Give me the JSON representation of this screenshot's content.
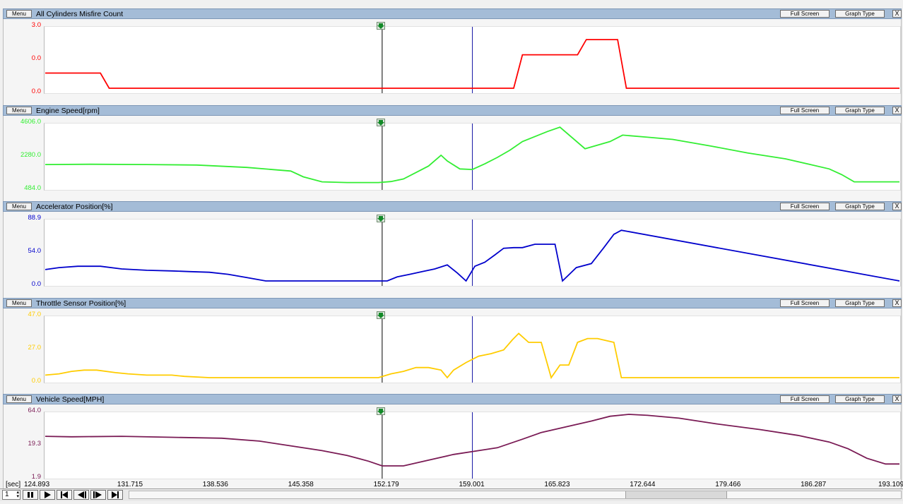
{
  "panels": [
    {
      "title": "All Cylinders Misfire Count",
      "color": "#ff0000",
      "ylabels": [
        "3.0",
        "0.0",
        "0.0"
      ],
      "menu_label": "Menu",
      "full_screen_label": "Full Screen",
      "graph_type_label": "Graph Type",
      "close_label": "X",
      "chart_data": {
        "type": "line",
        "x": [
          124.893,
          129.3,
          130.0,
          151.5,
          160.0,
          162.3,
          163.0,
          167.4,
          168.1,
          170.6,
          171.3,
          193.109
        ],
        "values": [
          0.5,
          0.5,
          0,
          0,
          0,
          0,
          1.1,
          1.1,
          1.6,
          1.6,
          0,
          0
        ],
        "ylim": [
          0,
          1.95
        ]
      }
    },
    {
      "title": "Engine Speed[rpm]",
      "color": "#33ee33",
      "ylabels": [
        "4606.0",
        "2280.0",
        "484.0"
      ],
      "menu_label": "Menu",
      "full_screen_label": "Full Screen",
      "graph_type_label": "Graph Type",
      "close_label": "X",
      "chart_data": {
        "type": "line",
        "x": [
          124.893,
          128.5,
          133.0,
          137.0,
          141.0,
          144.5,
          145.5,
          147.0,
          149.0,
          151.5,
          152.5,
          153.5,
          154.5,
          155.5,
          156.5,
          157.0,
          158.0,
          159.0,
          160.0,
          161.0,
          162.0,
          163.0,
          164.0,
          165.0,
          166.0,
          168.0,
          170.0,
          171.0,
          173.0,
          175.0,
          178.0,
          181.0,
          184.0,
          186.0,
          187.5,
          188.5,
          189.5,
          193.109
        ],
        "values": [
          1900,
          1920,
          1900,
          1870,
          1700,
          1450,
          1050,
          700,
          650,
          650,
          720,
          900,
          1350,
          1800,
          2550,
          2150,
          1600,
          1560,
          1950,
          2400,
          2900,
          3500,
          3850,
          4200,
          4500,
          3000,
          3500,
          3950,
          3800,
          3650,
          3200,
          2700,
          2300,
          1900,
          1600,
          1200,
          700,
          700
        ],
        "ylim": [
          484,
          4606
        ]
      }
    },
    {
      "title": "Accelerator Position[%]",
      "color": "#0000cc",
      "ylabels": [
        "88.9",
        "54.0",
        "0.0"
      ],
      "menu_label": "Menu",
      "full_screen_label": "Full Screen",
      "graph_type_label": "Graph Type",
      "close_label": "X",
      "chart_data": {
        "type": "line",
        "x": [
          124.893,
          126.0,
          127.5,
          128.5,
          129.3,
          131.0,
          133.0,
          135.0,
          136.5,
          138.0,
          139.5,
          141.0,
          142.5,
          151.5,
          152.2,
          153.0,
          154.0,
          155.0,
          156.0,
          157.0,
          157.8,
          158.5,
          159.2,
          160.0,
          160.8,
          161.5,
          162.3,
          163.0,
          164.0,
          164.8,
          165.6,
          166.2,
          167.3,
          168.5,
          169.5,
          170.3,
          170.9,
          193.109
        ],
        "values": [
          17,
          20,
          22,
          22,
          22,
          18,
          16,
          15,
          14,
          13,
          10,
          5,
          0,
          0,
          0,
          6,
          10,
          14,
          18,
          24,
          12,
          0,
          22,
          28,
          39,
          49,
          50,
          50,
          55,
          55,
          55,
          0,
          20,
          26,
          50,
          70,
          76,
          0
        ],
        "ylim": [
          0,
          88.9
        ]
      }
    },
    {
      "title": "Throttle Sensor Position[%]",
      "color": "#ffcc00",
      "ylabels": [
        "47.0",
        "27.0",
        "0.0"
      ],
      "menu_label": "Menu",
      "full_screen_label": "Full Screen",
      "graph_type_label": "Graph Type",
      "close_label": "X",
      "chart_data": {
        "type": "line",
        "x": [
          124.893,
          126.0,
          127.0,
          128.0,
          129.0,
          130.5,
          131.5,
          133.0,
          134.0,
          135.0,
          136.0,
          138.0,
          139.0,
          140.0,
          151.5,
          152.5,
          153.5,
          154.5,
          155.5,
          156.5,
          157.0,
          157.5,
          158.5,
          159.5,
          160.5,
          161.5,
          162.2,
          162.7,
          163.5,
          164.5,
          165.3,
          166.0,
          166.7,
          167.4,
          168.2,
          169.0,
          170.3,
          170.9,
          193.109
        ],
        "values": [
          2,
          3,
          5,
          6,
          6,
          4,
          3,
          2,
          2,
          2,
          1,
          0,
          0,
          0,
          0,
          3,
          5,
          8,
          8,
          6,
          0,
          6,
          12,
          17,
          19,
          22,
          30,
          35,
          28,
          28,
          0,
          10,
          10,
          28,
          31,
          31,
          28,
          0,
          0
        ],
        "ylim": [
          0,
          47
        ]
      }
    },
    {
      "title": "Vehicle Speed[MPH]",
      "color": "#7a1b55",
      "ylabels": [
        "64.0",
        "19.3",
        "1.9"
      ],
      "menu_label": "Menu",
      "full_screen_label": "Full Screen",
      "graph_type_label": "Graph Type",
      "close_label": "X",
      "chart_data": {
        "type": "line",
        "x": [
          124.893,
          127.0,
          131.0,
          135.0,
          139.0,
          142.0,
          144.5,
          147.0,
          149.0,
          150.7,
          151.8,
          153.5,
          155.5,
          157.5,
          159.5,
          161.0,
          163.0,
          164.5,
          166.5,
          168.5,
          170.0,
          171.5,
          173.0,
          175.5,
          178.5,
          182.0,
          185.0,
          187.5,
          189.0,
          190.5,
          192.0,
          193.109
        ],
        "values": [
          41,
          40.5,
          41,
          40,
          39,
          36,
          31,
          26,
          21,
          15,
          10,
          10,
          16,
          22,
          26,
          29,
          38,
          45,
          51,
          57,
          62,
          64,
          63,
          60,
          54,
          48,
          42,
          35,
          28,
          18,
          12,
          12
        ],
        "ylim": [
          1.9,
          64
        ]
      }
    }
  ],
  "cursor": {
    "marker_time": 151.8,
    "line_time": 159.001
  },
  "x_axis": {
    "unit_label": "[sec]",
    "ticks": [
      "124.893",
      "131.715",
      "138.536",
      "145.358",
      "152.179",
      "159.001",
      "165.823",
      "172.644",
      "179.466",
      "186.287",
      "193.109"
    ],
    "range": [
      124.893,
      193.109
    ]
  },
  "playback": {
    "spinner_value": "1"
  },
  "icons": {
    "marker": "green-marker-arrow-icon",
    "pause": "pause-icon",
    "play": "play-icon",
    "skip_start": "skip-start-icon",
    "rewind": "rewind-icon",
    "forward": "forward-icon",
    "skip_end": "skip-end-icon"
  }
}
